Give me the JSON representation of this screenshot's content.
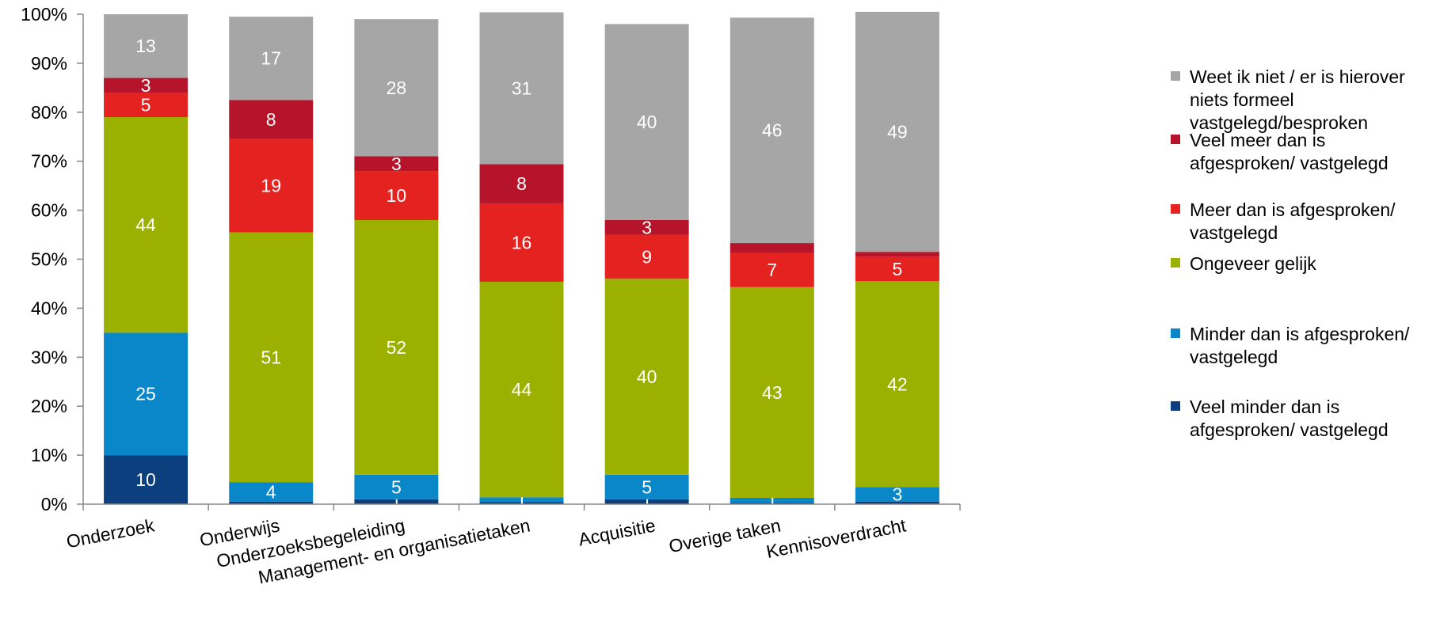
{
  "chart_data": {
    "type": "bar",
    "stacked": true,
    "percent_axis": true,
    "title": "",
    "xlabel": "",
    "ylabel": "",
    "ylim": [
      0,
      100
    ],
    "yticks": [
      "0%",
      "10%",
      "20%",
      "30%",
      "40%",
      "50%",
      "60%",
      "70%",
      "80%",
      "90%",
      "100%"
    ],
    "grid": false,
    "legend_position": "right",
    "categories": [
      "Onderzoek",
      "Onderwijs",
      "Onderzoeksbegeleiding",
      "Management- en organisatietaken",
      "Acquisitie",
      "Overige taken",
      "Kennisoverdracht"
    ],
    "series": [
      {
        "name": "Veel minder dan is afgesproken/ vastgelegd",
        "color": "#0b3f7e",
        "values": [
          10,
          0.5,
          1,
          0.4,
          1,
          0.3,
          0.5
        ],
        "labels": [
          "10",
          "",
          "1",
          "",
          "1",
          "",
          ""
        ]
      },
      {
        "name": "Minder dan is afgesproken/ vastgelegd",
        "color": "#0a87c8",
        "values": [
          25,
          4,
          5,
          1,
          5,
          1,
          3
        ],
        "labels": [
          "25",
          "4",
          "5",
          "1",
          "5",
          "1",
          "3"
        ]
      },
      {
        "name": "Ongeveer gelijk",
        "color": "#9cb000",
        "values": [
          44,
          51,
          52,
          44,
          40,
          43,
          42
        ],
        "labels": [
          "44",
          "51",
          "52",
          "44",
          "40",
          "43",
          "42"
        ]
      },
      {
        "name": "Meer dan is afgesproken/ vastgelegd",
        "color": "#e42320",
        "values": [
          5,
          19,
          10,
          16,
          9,
          7,
          5
        ],
        "labels": [
          "5",
          "19",
          "10",
          "16",
          "9",
          "7",
          "5"
        ]
      },
      {
        "name": "Veel meer dan is afgesproken/ vastgelegd",
        "color": "#b5142a",
        "values": [
          3,
          8,
          3,
          8,
          3,
          2,
          1
        ],
        "labels": [
          "3",
          "8",
          "3",
          "8",
          "3",
          "",
          ""
        ]
      },
      {
        "name": "Weet ik niet / er is hierover niets formeel vastgelegd/besproken",
        "color": "#a6a6a6",
        "values": [
          13,
          17,
          28,
          31,
          40,
          46,
          49
        ],
        "labels": [
          "13",
          "17",
          "28",
          "31",
          "40",
          "46",
          "49"
        ]
      }
    ],
    "legend": [
      {
        "lines": [
          "Weet ik niet / er is hierover",
          "niets formeel",
          "vastgelegd/besproken"
        ],
        "color": "#a6a6a6"
      },
      {
        "lines": [
          "Veel meer dan is",
          "afgesproken/ vastgelegd"
        ],
        "color": "#b5142a"
      },
      {
        "lines": [
          "Meer dan is afgesproken/",
          "vastgelegd"
        ],
        "color": "#e42320"
      },
      {
        "lines": [
          "Ongeveer gelijk"
        ],
        "color": "#9cb000"
      },
      {
        "lines": [
          "Minder dan is afgesproken/",
          "vastgelegd"
        ],
        "color": "#0a87c8"
      },
      {
        "lines": [
          "Veel minder dan is",
          "afgesproken/ vastgelegd"
        ],
        "color": "#0b3f7e"
      }
    ]
  }
}
